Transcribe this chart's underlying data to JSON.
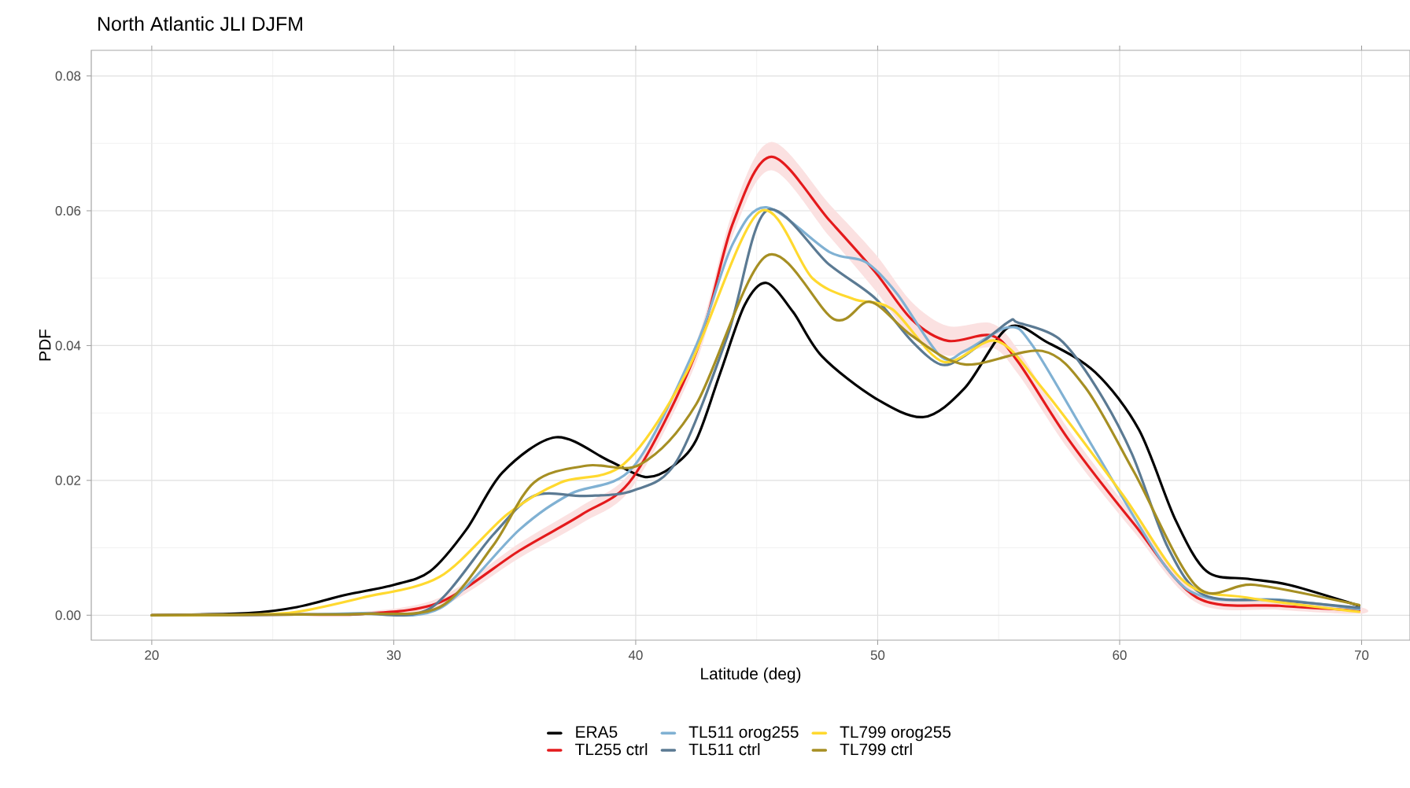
{
  "chart_data": {
    "type": "line",
    "title": "North Atlantic JLI DJFM",
    "xlabel": "Latitude (deg)",
    "ylabel": "PDF",
    "xlim": [
      17.5,
      72
    ],
    "ylim": [
      -0.0037,
      0.0838
    ],
    "xticks": [
      20,
      30,
      40,
      50,
      60,
      70
    ],
    "yticks": [
      {
        "value": 0,
        "label": "0.00"
      },
      {
        "value": 0.02,
        "label": "0.02"
      },
      {
        "value": 0.04,
        "label": "0.04"
      },
      {
        "value": 0.06,
        "label": "0.06"
      },
      {
        "value": 0.08,
        "label": "0.08"
      }
    ],
    "grid": true,
    "legend": "bottom",
    "series": [
      {
        "name": "ERA5",
        "color": "#000000",
        "x": [
          20,
          24,
          26,
          28,
          30,
          31.5,
          33,
          34.5,
          36.7,
          38.9,
          40.4,
          41.5,
          42.5,
          43.5,
          44.5,
          45.4,
          46.5,
          47.7,
          49.9,
          51.9,
          53.6,
          55.4,
          57,
          59,
          60.8,
          62.3,
          63.6,
          65.3,
          67,
          69.9
        ],
        "values": [
          0,
          0.0003,
          0.0012,
          0.003,
          0.0045,
          0.0065,
          0.0127,
          0.0212,
          0.0264,
          0.0229,
          0.0205,
          0.022,
          0.026,
          0.036,
          0.046,
          0.0493,
          0.045,
          0.0384,
          0.0322,
          0.0294,
          0.0337,
          0.0427,
          0.0405,
          0.036,
          0.0275,
          0.0142,
          0.0065,
          0.0054,
          0.0045,
          0.0014
        ]
      },
      {
        "name": "TL255 ctrl",
        "color": "#e41a1c",
        "x": [
          20,
          26,
          28.7,
          31.9,
          35.2,
          37.8,
          39.9,
          42.5,
          44,
          45.6,
          48,
          49.9,
          51.4,
          52.9,
          54.7,
          55.8,
          57.9,
          60.6,
          63.2,
          66.6,
          69.9
        ],
        "values": [
          0,
          0.0001,
          0.0002,
          0.0019,
          0.0096,
          0.015,
          0.0205,
          0.039,
          0.058,
          0.068,
          0.0586,
          0.0509,
          0.0439,
          0.0407,
          0.0415,
          0.0376,
          0.026,
          0.0135,
          0.0026,
          0.0014,
          0.0007
        ],
        "lower": [
          0,
          0,
          0,
          0.0012,
          0.0085,
          0.0137,
          0.0192,
          0.0375,
          0.0562,
          0.066,
          0.0562,
          0.0482,
          0.0413,
          0.0385,
          0.0397,
          0.0358,
          0.0245,
          0.0123,
          0.0018,
          0.0008,
          0.0002
        ],
        "upper": [
          0.0002,
          0.0003,
          0.0005,
          0.0026,
          0.0107,
          0.0163,
          0.0218,
          0.0405,
          0.0598,
          0.0702,
          0.061,
          0.0536,
          0.0465,
          0.0429,
          0.0433,
          0.0394,
          0.0275,
          0.0147,
          0.0034,
          0.002,
          0.0012
        ]
      },
      {
        "name": "TL511 orog255",
        "color": "#80b1d3",
        "x": [
          20,
          26,
          28.7,
          31.9,
          35.2,
          37.3,
          39.9,
          42.5,
          44,
          45.4,
          48,
          49.5,
          50.8,
          52.6,
          53.6,
          55.4,
          56.4,
          59,
          61.9,
          63.6,
          66.6,
          69.9
        ],
        "values": [
          0,
          0.0001,
          0.0003,
          0.001,
          0.0127,
          0.018,
          0.022,
          0.04,
          0.055,
          0.0605,
          0.0539,
          0.0524,
          0.0477,
          0.0384,
          0.0392,
          0.0427,
          0.04,
          0.0243,
          0.0072,
          0.0026,
          0.0023,
          0.0009
        ]
      },
      {
        "name": "TL511 ctrl",
        "color": "#5b7a93",
        "x": [
          20,
          26,
          28.7,
          31.5,
          34.1,
          35.8,
          37.9,
          39.9,
          41.7,
          43.8,
          45.4,
          48,
          49.9,
          51.4,
          52.6,
          53.6,
          55.4,
          55.8,
          57.5,
          59,
          60.5,
          62,
          63.5,
          66.6,
          69.9
        ],
        "values": [
          0,
          0.0001,
          0.0002,
          0.001,
          0.0119,
          0.0177,
          0.0177,
          0.0185,
          0.0229,
          0.0415,
          0.06,
          0.052,
          0.047,
          0.0407,
          0.0372,
          0.0385,
          0.0435,
          0.0434,
          0.041,
          0.034,
          0.024,
          0.01,
          0.003,
          0.0022,
          0.0011
        ]
      },
      {
        "name": "TL799 orog255",
        "color": "#ffd92f",
        "x": [
          20,
          24,
          26,
          28.7,
          31.9,
          34.7,
          36.9,
          39.5,
          42.1,
          45.1,
          47.3,
          49,
          50.6,
          52.7,
          54.9,
          56.8,
          60.1,
          62.7,
          65.3,
          69.9
        ],
        "values": [
          0,
          0.0001,
          0.0005,
          0.0026,
          0.0057,
          0.015,
          0.0197,
          0.0224,
          0.036,
          0.0598,
          0.05,
          0.0469,
          0.0454,
          0.0376,
          0.0407,
          0.0337,
          0.018,
          0.0049,
          0.0026,
          0.0005
        ]
      },
      {
        "name": "TL799 ctrl",
        "color": "#a68f23",
        "x": [
          20,
          26,
          28.7,
          31.9,
          34.1,
          35.8,
          38,
          40.2,
          42.5,
          45.4,
          48.2,
          49.7,
          51.4,
          53.6,
          56.8,
          58.6,
          60.6,
          63.2,
          65.6,
          69.9
        ],
        "values": [
          0,
          0.0001,
          0.0002,
          0.0012,
          0.0103,
          0.0197,
          0.0222,
          0.0224,
          0.0313,
          0.0533,
          0.0439,
          0.0465,
          0.0415,
          0.0372,
          0.0392,
          0.0337,
          0.0212,
          0.0042,
          0.0045,
          0.0015
        ]
      }
    ]
  }
}
